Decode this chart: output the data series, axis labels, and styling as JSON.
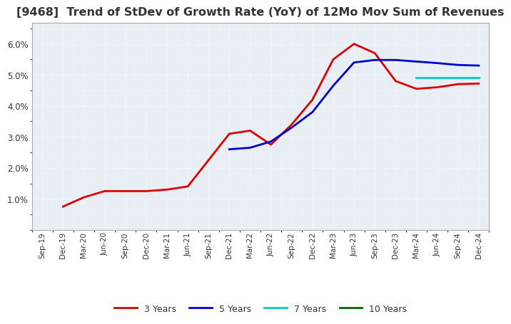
{
  "title": "[9468]  Trend of StDev of Growth Rate (YoY) of 12Mo Mov Sum of Revenues",
  "title_fontsize": 11.5,
  "title_color": "#333333",
  "background_color": "#ffffff",
  "plot_bg_color": "#e8eef4",
  "grid_color": "#ffffff",
  "x_labels": [
    "Sep-19",
    "Dec-19",
    "Mar-20",
    "Jun-20",
    "Sep-20",
    "Dec-20",
    "Mar-21",
    "Jun-21",
    "Sep-21",
    "Dec-21",
    "Mar-22",
    "Jun-22",
    "Sep-22",
    "Dec-22",
    "Mar-23",
    "Jun-23",
    "Sep-23",
    "Dec-23",
    "Mar-24",
    "Jun-24",
    "Sep-24",
    "Dec-24"
  ],
  "series": [
    {
      "label": "3 Years",
      "color": "#dd0000",
      "data_x": [
        1,
        2,
        3,
        4,
        5,
        6,
        7,
        8,
        9,
        10,
        11,
        12,
        13,
        14,
        15,
        16,
        17,
        18,
        19,
        20,
        21
      ],
      "data_y": [
        0.0075,
        0.0105,
        0.0125,
        0.0125,
        0.0125,
        0.013,
        0.014,
        0.0225,
        0.031,
        0.032,
        0.0275,
        0.034,
        0.042,
        0.055,
        0.06,
        0.057,
        0.048,
        0.0455,
        0.046,
        0.047,
        0.0472
      ]
    },
    {
      "label": "5 Years",
      "color": "#0000cc",
      "data_x": [
        9,
        10,
        11,
        12,
        13,
        14,
        15,
        16,
        17,
        18,
        19,
        20,
        21
      ],
      "data_y": [
        0.026,
        0.0265,
        0.0285,
        0.033,
        0.038,
        0.0465,
        0.054,
        0.0548,
        0.0548,
        0.0543,
        0.0538,
        0.0532,
        0.053
      ]
    },
    {
      "label": "7 Years",
      "color": "#00cccc",
      "data_x": [
        18,
        19,
        20,
        21
      ],
      "data_y": [
        0.049,
        0.049,
        0.049,
        0.049
      ]
    },
    {
      "label": "10 Years",
      "color": "#006600",
      "data_x": [],
      "data_y": []
    }
  ],
  "ylim": [
    0.0,
    0.0667
  ],
  "yticks": [
    0.01,
    0.02,
    0.03,
    0.04,
    0.05,
    0.06
  ],
  "legend_ncol": 4,
  "line_width": 2.0
}
